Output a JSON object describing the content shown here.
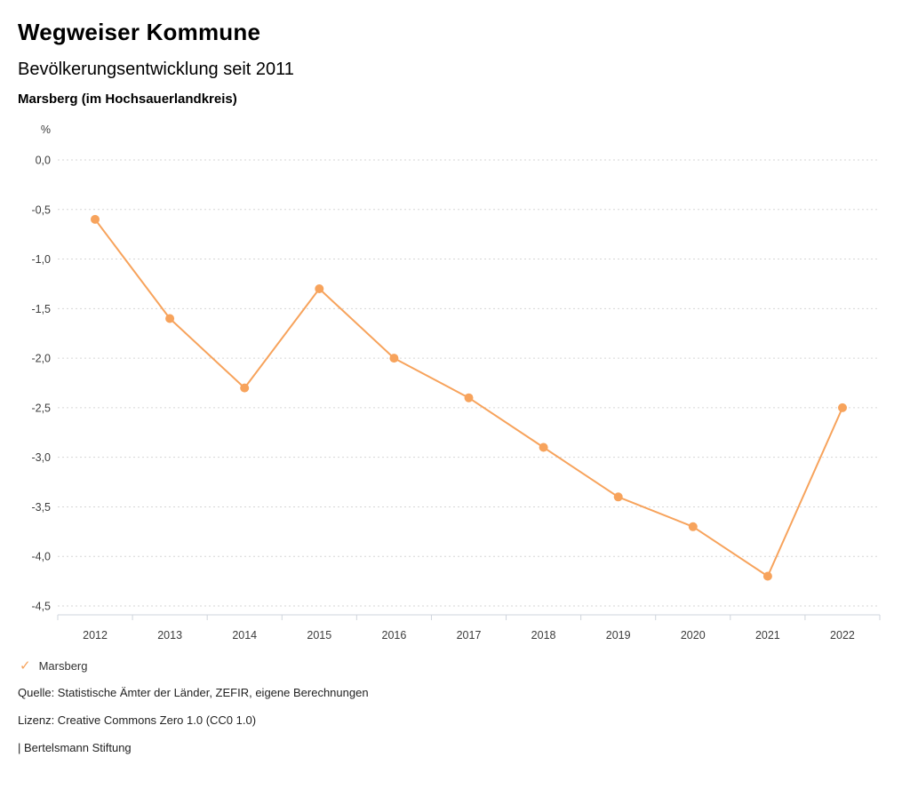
{
  "header": {
    "title": "Wegweiser Kommune",
    "subtitle": "Bevölkerungsentwicklung seit 2011",
    "location": "Marsberg (im Hochsauerlandkreis)"
  },
  "legend": {
    "check_icon": "✓",
    "label": "Marsberg"
  },
  "footer": {
    "source": "Quelle: Statistische Ämter der Länder, ZEFIR, eigene Berechnungen",
    "license": "Lizenz: Creative Commons Zero 1.0 (CC0 1.0)",
    "attribution": "| Bertelsmann Stiftung"
  },
  "colors": {
    "series": "#f7a35c",
    "grid": "#d6d6d6",
    "axis": "#cfd4dc",
    "tick_text": "#3c3c3c"
  },
  "chart_data": {
    "type": "line",
    "title": "Bevölkerungsentwicklung seit 2011",
    "subtitle": "Marsberg (im Hochsauerlandkreis)",
    "x": [
      "2012",
      "2013",
      "2014",
      "2015",
      "2016",
      "2017",
      "2018",
      "2019",
      "2020",
      "2021",
      "2022"
    ],
    "series": [
      {
        "name": "Marsberg",
        "values": [
          -0.6,
          -1.6,
          -2.3,
          -1.3,
          -2.0,
          -2.4,
          -2.9,
          -3.4,
          -3.7,
          -4.2,
          -2.5
        ]
      }
    ],
    "xlabel": "",
    "ylabel": "%",
    "ylim": [
      0,
      -4.5
    ],
    "ytick_step": 0.5,
    "decimal_separator": ",",
    "grid": true,
    "marker": "circle",
    "legend_position": "bottom-left"
  }
}
